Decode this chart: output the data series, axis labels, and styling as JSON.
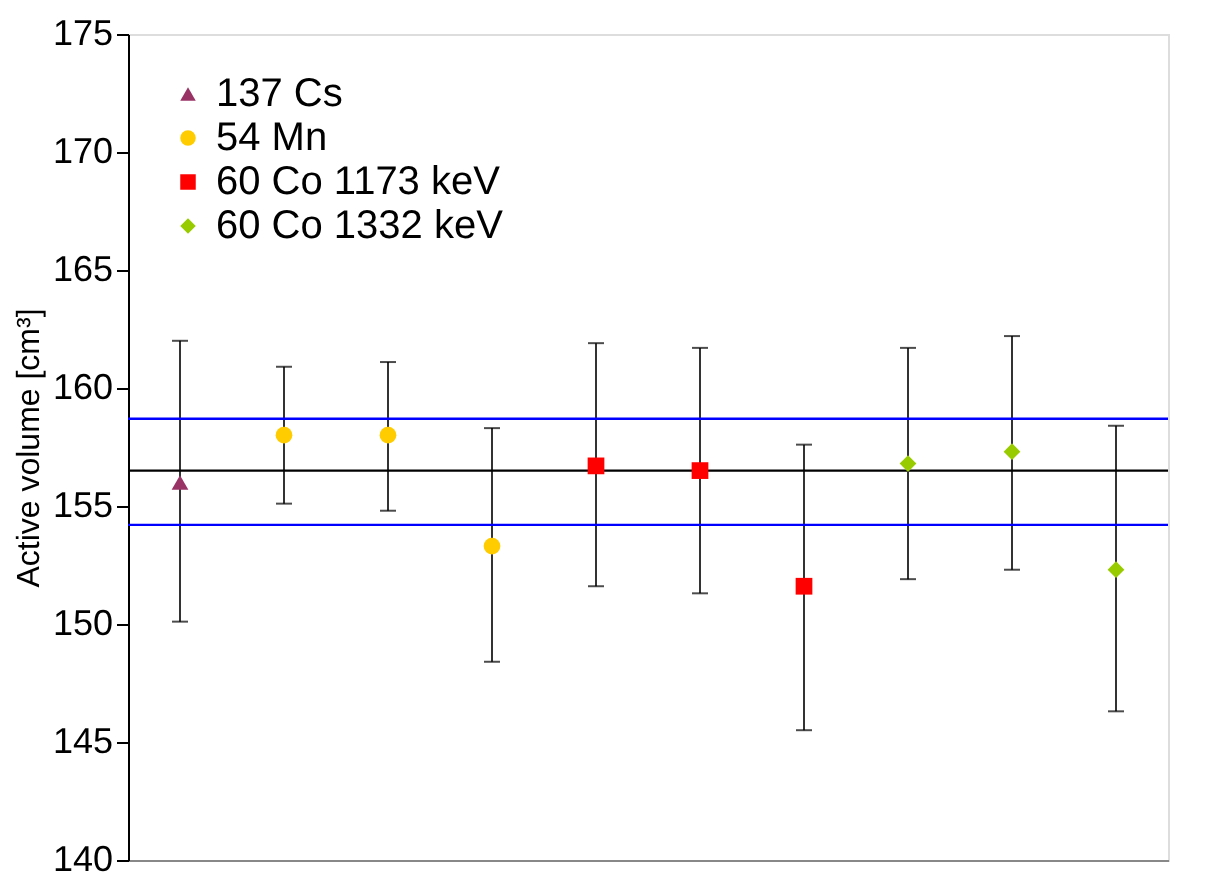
{
  "chart_data": {
    "type": "scatter",
    "ylabel": "Active volume [cm³]",
    "categories": [
      null,
      null,
      null,
      null,
      null,
      null,
      null,
      null,
      null,
      null
    ],
    "series": [
      {
        "name": "137 Cs",
        "color": "#993366",
        "marker": "triangle",
        "values": [
          156.0,
          null,
          null,
          null,
          null,
          null,
          null,
          null,
          null,
          null
        ],
        "errors": [
          [
            150.1,
            162.0
          ],
          null,
          null,
          null,
          null,
          null,
          null,
          null,
          null,
          null
        ]
      },
      {
        "name": "54 Mn",
        "color": "#ffcc00",
        "marker": "circle",
        "values": [
          null,
          158.0,
          158.0,
          153.3,
          null,
          null,
          null,
          null,
          null,
          null
        ],
        "errors": [
          null,
          [
            155.1,
            160.9
          ],
          [
            154.8,
            161.1
          ],
          [
            148.4,
            158.3
          ],
          null,
          null,
          null,
          null,
          null,
          null
        ]
      },
      {
        "name": "60 Co 1173 keV",
        "color": "#ff0000",
        "marker": "square",
        "values": [
          null,
          null,
          null,
          null,
          156.7,
          156.5,
          151.6,
          null,
          null,
          null
        ],
        "errors": [
          null,
          null,
          null,
          null,
          [
            151.6,
            161.9
          ],
          [
            151.3,
            161.7
          ],
          [
            145.5,
            157.6
          ],
          null,
          null,
          null
        ]
      },
      {
        "name": "60 Co 1332 keV",
        "color": "#99cc00",
        "marker": "diamond",
        "values": [
          null,
          null,
          null,
          null,
          null,
          null,
          null,
          156.8,
          157.3,
          152.3
        ],
        "errors": [
          null,
          null,
          null,
          null,
          null,
          null,
          null,
          [
            151.9,
            161.7
          ],
          [
            152.3,
            162.2
          ],
          [
            146.3,
            158.4
          ]
        ]
      }
    ],
    "ref_lines": [
      {
        "axis": "y",
        "value": 156.5,
        "color": "#000000"
      },
      {
        "axis": "y",
        "value": 158.7,
        "color": "#0000ff"
      },
      {
        "axis": "y",
        "value": 154.2,
        "color": "#0000ff"
      }
    ],
    "ylim": [
      140,
      175
    ],
    "yticks": [
      140,
      145,
      150,
      155,
      160,
      165,
      170,
      175
    ],
    "grid": false,
    "legend": "top left",
    "tick_labels": "y"
  }
}
